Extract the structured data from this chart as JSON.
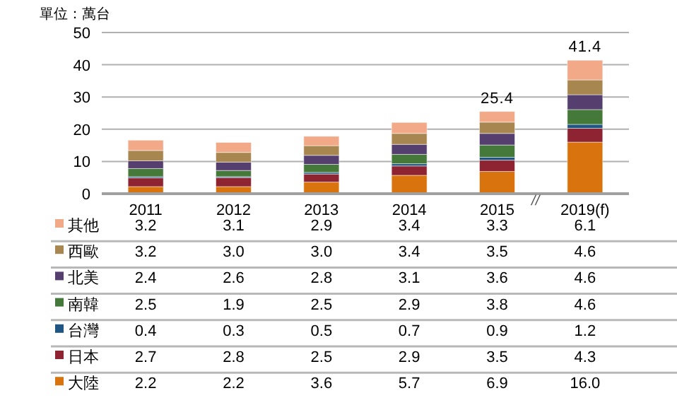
{
  "chart_data": {
    "type": "bar",
    "stacked": true,
    "ylabel": "單位：萬台",
    "categories": [
      "2011",
      "2012",
      "2013",
      "2014",
      "2015",
      "2019(f)"
    ],
    "series": [
      {
        "name": "大陸",
        "color": "#d9730d",
        "values": [
          2.2,
          2.2,
          3.6,
          5.7,
          6.9,
          16.0
        ],
        "value_labels": [
          "2.2",
          "2.2",
          "3.6",
          "5.7",
          "6.9",
          "16.0"
        ]
      },
      {
        "name": "日本",
        "color": "#8e2432",
        "values": [
          2.7,
          2.8,
          2.5,
          2.9,
          3.5,
          4.3
        ],
        "value_labels": [
          "2.7",
          "2.8",
          "2.5",
          "2.9",
          "3.5",
          "4.3"
        ]
      },
      {
        "name": "台灣",
        "color": "#1f5582",
        "values": [
          0.4,
          0.3,
          0.5,
          0.7,
          0.9,
          1.2
        ],
        "value_labels": [
          "0.4",
          "0.3",
          "0.5",
          "0.7",
          "0.9",
          "1.2"
        ]
      },
      {
        "name": "南韓",
        "color": "#45793a",
        "values": [
          2.5,
          1.9,
          2.5,
          2.9,
          3.8,
          4.6
        ],
        "value_labels": [
          "2.5",
          "1.9",
          "2.5",
          "2.9",
          "3.8",
          "4.6"
        ]
      },
      {
        "name": "北美",
        "color": "#553f6e",
        "values": [
          2.4,
          2.6,
          2.8,
          3.1,
          3.6,
          4.6
        ],
        "value_labels": [
          "2.4",
          "2.6",
          "2.8",
          "3.1",
          "3.6",
          "4.6"
        ]
      },
      {
        "name": "西歐",
        "color": "#a8864f",
        "values": [
          3.2,
          3.0,
          3.0,
          3.4,
          3.5,
          4.6
        ],
        "value_labels": [
          "3.2",
          "3.0",
          "3.0",
          "3.4",
          "3.5",
          "4.6"
        ]
      },
      {
        "name": "其他",
        "color": "#f2a988",
        "values": [
          3.2,
          3.1,
          2.9,
          3.4,
          3.3,
          6.1
        ],
        "value_labels": [
          "3.2",
          "3.1",
          "2.9",
          "3.4",
          "3.3",
          "6.1"
        ]
      }
    ],
    "totals": [
      null,
      null,
      null,
      null,
      "25.4",
      "41.4"
    ],
    "annotations": [
      "//"
    ],
    "ylim": [
      0,
      50
    ],
    "yticks": [
      0,
      10,
      20,
      30,
      40,
      50
    ],
    "grid": "y",
    "legend": "bottom left"
  }
}
